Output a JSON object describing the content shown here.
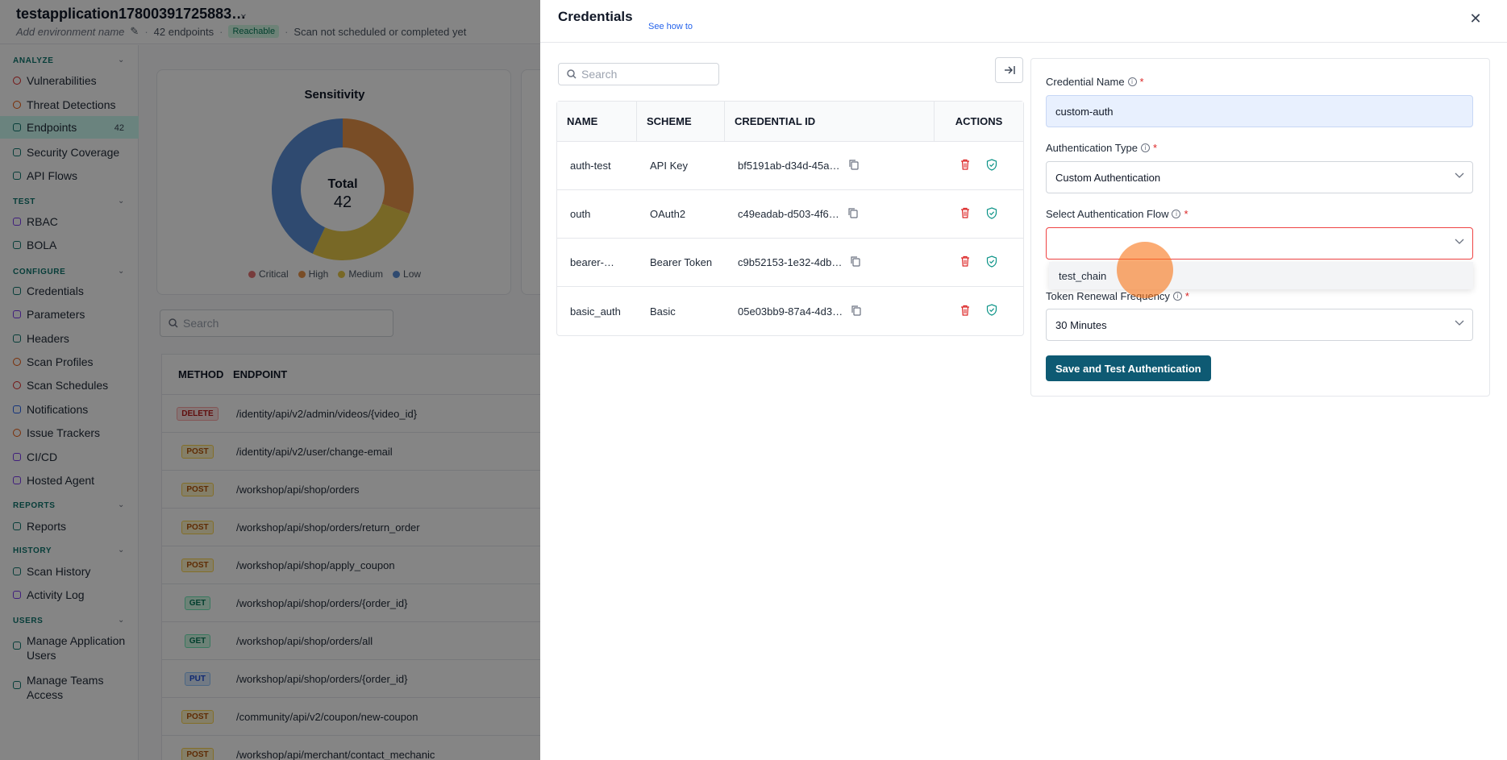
{
  "app": {
    "title": "testapplication17800391725883…",
    "env_placeholder": "Add environment name",
    "endpoints_count": "42 endpoints",
    "reachable_badge": "Reachable",
    "scan_status": "Scan not scheduled or completed yet"
  },
  "sidebar": {
    "sections": [
      {
        "label": "ANALYZE",
        "items": [
          {
            "label": "Vulnerabilities",
            "icon": "shield-alert-icon"
          },
          {
            "label": "Threat Detections",
            "icon": "radar-icon"
          },
          {
            "label": "Endpoints",
            "icon": "endpoints-icon",
            "count": "42",
            "active": true
          },
          {
            "label": "Security Coverage",
            "icon": "shield-icon"
          },
          {
            "label": "API Flows",
            "icon": "flow-icon"
          }
        ]
      },
      {
        "label": "TEST",
        "items": [
          {
            "label": "RBAC",
            "icon": "rbac-icon"
          },
          {
            "label": "BOLA",
            "icon": "bola-icon"
          }
        ]
      },
      {
        "label": "CONFIGURE",
        "items": [
          {
            "label": "Credentials",
            "icon": "key-icon"
          },
          {
            "label": "Parameters",
            "icon": "braces-icon"
          },
          {
            "label": "Headers",
            "icon": "headers-icon"
          },
          {
            "label": "Scan Profiles",
            "icon": "profile-icon"
          },
          {
            "label": "Scan Schedules",
            "icon": "calendar-icon"
          },
          {
            "label": "Notifications",
            "icon": "bell-icon"
          },
          {
            "label": "Issue Trackers",
            "icon": "tracker-icon"
          },
          {
            "label": "CI/CD",
            "icon": "cicd-icon"
          },
          {
            "label": "Hosted Agent",
            "icon": "agent-icon"
          }
        ]
      },
      {
        "label": "REPORTS",
        "items": [
          {
            "label": "Reports",
            "icon": "report-icon"
          }
        ]
      },
      {
        "label": "HISTORY",
        "items": [
          {
            "label": "Scan History",
            "icon": "history-icon"
          },
          {
            "label": "Activity Log",
            "icon": "log-icon"
          }
        ]
      },
      {
        "label": "USERS",
        "items": [
          {
            "label": "Manage Application Users",
            "icon": "users-icon"
          },
          {
            "label": "Manage Teams Access",
            "icon": "teams-icon"
          }
        ]
      }
    ]
  },
  "sensitivity": {
    "title": "Sensitivity",
    "total_label": "Total",
    "total_value": "42",
    "legend": [
      {
        "label": "Critical",
        "color": "#e57373"
      },
      {
        "label": "High",
        "color": "#e9944a"
      },
      {
        "label": "Medium",
        "color": "#e6c84a"
      },
      {
        "label": "Low",
        "color": "#5b8fd6"
      }
    ]
  },
  "endpoints": {
    "search_placeholder": "Search",
    "headers": {
      "method": "METHOD",
      "endpoint": "ENDPOINT"
    },
    "rows": [
      {
        "method": "DELETE",
        "path": "/identity/api/v2/admin/videos/{video_id}"
      },
      {
        "method": "POST",
        "path": "/identity/api/v2/user/change-email"
      },
      {
        "method": "POST",
        "path": "/workshop/api/shop/orders"
      },
      {
        "method": "POST",
        "path": "/workshop/api/shop/orders/return_order"
      },
      {
        "method": "POST",
        "path": "/workshop/api/shop/apply_coupon"
      },
      {
        "method": "GET",
        "path": "/workshop/api/shop/orders/{order_id}"
      },
      {
        "method": "GET",
        "path": "/workshop/api/shop/orders/all"
      },
      {
        "method": "PUT",
        "path": "/workshop/api/shop/orders/{order_id}"
      },
      {
        "method": "POST",
        "path": "/community/api/v2/coupon/new-coupon"
      },
      {
        "method": "POST",
        "path": "/workshop/api/merchant/contact_mechanic"
      }
    ]
  },
  "credentials": {
    "title": "Credentials",
    "see_how": "See how to",
    "search_placeholder": "Search",
    "table": {
      "headers": {
        "name": "NAME",
        "scheme": "SCHEME",
        "id": "CREDENTIAL ID",
        "actions": "ACTIONS"
      },
      "rows": [
        {
          "name": "auth-test",
          "scheme": "API Key",
          "id": "bf5191ab-d34d-45a…"
        },
        {
          "name": "outh",
          "scheme": "OAuth2",
          "id": "c49eadab-d503-4f6…"
        },
        {
          "name": "bearer-…",
          "scheme": "Bearer Token",
          "id": "c9b52153-1e32-4db…"
        },
        {
          "name": "basic_auth",
          "scheme": "Basic",
          "id": "05e03bb9-87a4-4d3…"
        }
      ]
    },
    "form": {
      "name_label": "Credential Name",
      "name_value": "custom-auth",
      "type_label": "Authentication Type",
      "type_value": "Custom Authentication",
      "flow_label": "Select Authentication Flow",
      "flow_value": "",
      "flow_options": [
        "test_chain"
      ],
      "renewal_label": "Token Renewal Frequency",
      "renewal_value": "30 Minutes",
      "submit_label": "Save and Test Authentication",
      "required_mark": "*"
    }
  },
  "colors": {
    "accent": "#0e5a73",
    "error": "#ef4444",
    "link": "#2563eb"
  }
}
